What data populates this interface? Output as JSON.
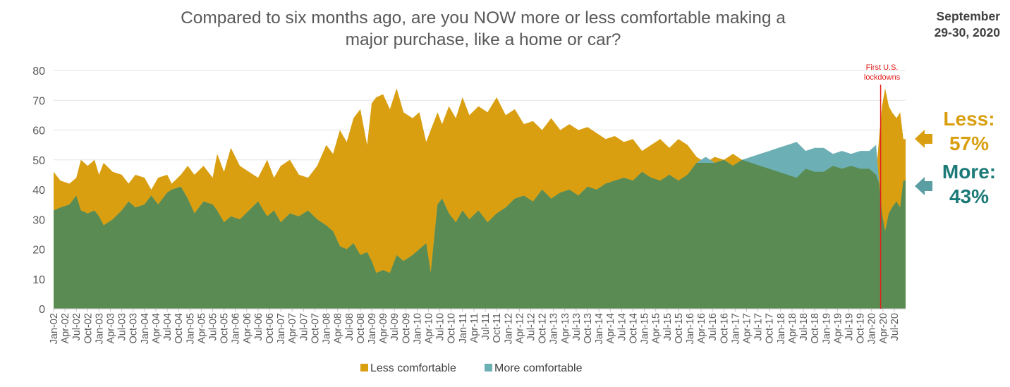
{
  "title_line1": "Compared to six months ago, are you NOW more or less comfortable making a",
  "title_line2": "major purchase, like a home or car?",
  "date_line1": "September",
  "date_line2": "29-30, 2020",
  "callouts": {
    "less_label": "Less:",
    "less_value": "57%",
    "more_label": "More:",
    "more_value": "43%"
  },
  "annotation": {
    "line1": "First U.S.",
    "line2": "lockdowns",
    "x": 2020.2
  },
  "colors": {
    "less": "#d99f11",
    "more": "#6cb0b6",
    "overlap": "#5a8b52",
    "annotation": "#e0201c",
    "grid": "#e3e3e3"
  },
  "chart_data": {
    "type": "area",
    "ylim": [
      0,
      80
    ],
    "y_ticks": [
      0,
      10,
      20,
      30,
      40,
      50,
      60,
      70,
      80
    ],
    "xlim": [
      2002.0,
      2020.75
    ],
    "x_tick_labels": [
      "Jan-02",
      "Apr-02",
      "Jul-02",
      "Oct-02",
      "Jan-03",
      "Apr-03",
      "Jul-03",
      "Oct-03",
      "Jan-04",
      "Apr-04",
      "Jul-04",
      "Oct-04",
      "Jan-05",
      "Apr-05",
      "Jul-05",
      "Oct-05",
      "Jan-06",
      "Apr-06",
      "Jul-06",
      "Oct-06",
      "Jan-07",
      "Apr-07",
      "Jul-07",
      "Oct-07",
      "Jan-08",
      "Apr-08",
      "Jul-08",
      "Oct-08",
      "Jan-09",
      "Apr-09",
      "Jul-09",
      "Oct-09",
      "Jan-10",
      "Apr-10",
      "Jul-10",
      "Oct-10",
      "Jan-11",
      "Apr-11",
      "Jul-11",
      "Oct-11",
      "Jan-12",
      "Apr-12",
      "Jul-12",
      "Oct-12",
      "Jan-13",
      "Apr-13",
      "Jul-13",
      "Oct-13",
      "Jan-14",
      "Apr-14",
      "Jul-14",
      "Oct-14",
      "Jan-15",
      "Apr-15",
      "Jul-15",
      "Oct-15",
      "Jan-16",
      "Apr-16",
      "Jul-16",
      "Oct-16",
      "Jan-17",
      "Apr-17",
      "Jul-17",
      "Oct-17",
      "Jan-18",
      "Apr-18",
      "Jul-18",
      "Oct-18",
      "Jan-19",
      "Apr-19",
      "Jul-19",
      "Oct-19",
      "Jan-20",
      "Apr-20",
      "Jul-20"
    ],
    "grid": true,
    "legend_position": "bottom",
    "series": [
      {
        "name": "Less comfortable",
        "points": [
          [
            2002.0,
            46
          ],
          [
            2002.15,
            43
          ],
          [
            2002.35,
            42
          ],
          [
            2002.5,
            44
          ],
          [
            2002.6,
            50
          ],
          [
            2002.75,
            48
          ],
          [
            2002.9,
            50
          ],
          [
            2003.0,
            45
          ],
          [
            2003.1,
            49
          ],
          [
            2003.3,
            46
          ],
          [
            2003.5,
            45
          ],
          [
            2003.65,
            42
          ],
          [
            2003.8,
            45
          ],
          [
            2004.0,
            44
          ],
          [
            2004.15,
            40
          ],
          [
            2004.3,
            44
          ],
          [
            2004.5,
            45
          ],
          [
            2004.6,
            42
          ],
          [
            2004.8,
            45
          ],
          [
            2004.95,
            48
          ],
          [
            2005.1,
            45
          ],
          [
            2005.3,
            48
          ],
          [
            2005.5,
            44
          ],
          [
            2005.6,
            52
          ],
          [
            2005.75,
            46
          ],
          [
            2005.9,
            54
          ],
          [
            2006.1,
            48
          ],
          [
            2006.3,
            46
          ],
          [
            2006.5,
            44
          ],
          [
            2006.7,
            50
          ],
          [
            2006.85,
            44
          ],
          [
            2007.0,
            48
          ],
          [
            2007.2,
            50
          ],
          [
            2007.4,
            45
          ],
          [
            2007.6,
            44
          ],
          [
            2007.8,
            48
          ],
          [
            2008.0,
            55
          ],
          [
            2008.15,
            52
          ],
          [
            2008.3,
            60
          ],
          [
            2008.45,
            56
          ],
          [
            2008.6,
            64
          ],
          [
            2008.75,
            67
          ],
          [
            2008.9,
            55
          ],
          [
            2009.0,
            69
          ],
          [
            2009.1,
            71
          ],
          [
            2009.25,
            72
          ],
          [
            2009.4,
            67
          ],
          [
            2009.55,
            74
          ],
          [
            2009.7,
            66
          ],
          [
            2009.9,
            64
          ],
          [
            2010.05,
            66
          ],
          [
            2010.2,
            56
          ],
          [
            2010.3,
            60
          ],
          [
            2010.45,
            66
          ],
          [
            2010.55,
            62
          ],
          [
            2010.7,
            68
          ],
          [
            2010.85,
            64
          ],
          [
            2011.0,
            71
          ],
          [
            2011.15,
            65
          ],
          [
            2011.35,
            68
          ],
          [
            2011.55,
            66
          ],
          [
            2011.75,
            71
          ],
          [
            2011.95,
            65
          ],
          [
            2012.15,
            67
          ],
          [
            2012.35,
            62
          ],
          [
            2012.55,
            63
          ],
          [
            2012.75,
            60
          ],
          [
            2012.95,
            64
          ],
          [
            2013.15,
            60
          ],
          [
            2013.35,
            62
          ],
          [
            2013.55,
            60
          ],
          [
            2013.75,
            61
          ],
          [
            2013.95,
            59
          ],
          [
            2014.15,
            57
          ],
          [
            2014.35,
            58
          ],
          [
            2014.55,
            56
          ],
          [
            2014.75,
            57
          ],
          [
            2014.95,
            53
          ],
          [
            2015.15,
            55
          ],
          [
            2015.35,
            57
          ],
          [
            2015.55,
            54
          ],
          [
            2015.75,
            57
          ],
          [
            2015.95,
            55
          ],
          [
            2016.15,
            51
          ],
          [
            2016.35,
            49
          ],
          [
            2016.55,
            51
          ],
          [
            2016.75,
            50
          ],
          [
            2016.95,
            52
          ],
          [
            2017.15,
            50
          ],
          [
            2017.35,
            49
          ],
          [
            2017.55,
            48
          ],
          [
            2017.75,
            47
          ],
          [
            2017.95,
            46
          ],
          [
            2018.15,
            45
          ],
          [
            2018.35,
            44
          ],
          [
            2018.55,
            47
          ],
          [
            2018.75,
            46
          ],
          [
            2018.95,
            46
          ],
          [
            2019.15,
            48
          ],
          [
            2019.35,
            47
          ],
          [
            2019.55,
            48
          ],
          [
            2019.75,
            47
          ],
          [
            2019.95,
            47
          ],
          [
            2020.1,
            45
          ],
          [
            2020.17,
            58
          ],
          [
            2020.23,
            68
          ],
          [
            2020.3,
            74
          ],
          [
            2020.38,
            68
          ],
          [
            2020.45,
            66
          ],
          [
            2020.55,
            64
          ],
          [
            2020.63,
            66
          ],
          [
            2020.7,
            57
          ],
          [
            2020.75,
            57
          ]
        ]
      },
      {
        "name": "More comfortable",
        "points": [
          [
            2002.0,
            33
          ],
          [
            2002.15,
            34
          ],
          [
            2002.35,
            35
          ],
          [
            2002.5,
            38
          ],
          [
            2002.6,
            33
          ],
          [
            2002.75,
            32
          ],
          [
            2002.9,
            33
          ],
          [
            2003.0,
            31
          ],
          [
            2003.1,
            28
          ],
          [
            2003.3,
            30
          ],
          [
            2003.5,
            33
          ],
          [
            2003.65,
            36
          ],
          [
            2003.8,
            34
          ],
          [
            2004.0,
            35
          ],
          [
            2004.15,
            38
          ],
          [
            2004.3,
            35
          ],
          [
            2004.5,
            39
          ],
          [
            2004.6,
            40
          ],
          [
            2004.8,
            41
          ],
          [
            2004.95,
            37
          ],
          [
            2005.1,
            32
          ],
          [
            2005.3,
            36
          ],
          [
            2005.5,
            35
          ],
          [
            2005.6,
            33
          ],
          [
            2005.75,
            29
          ],
          [
            2005.9,
            31
          ],
          [
            2006.1,
            30
          ],
          [
            2006.3,
            33
          ],
          [
            2006.5,
            36
          ],
          [
            2006.7,
            31
          ],
          [
            2006.85,
            33
          ],
          [
            2007.0,
            29
          ],
          [
            2007.2,
            32
          ],
          [
            2007.4,
            31
          ],
          [
            2007.6,
            33
          ],
          [
            2007.8,
            30
          ],
          [
            2008.0,
            28
          ],
          [
            2008.15,
            26
          ],
          [
            2008.3,
            21
          ],
          [
            2008.45,
            20
          ],
          [
            2008.6,
            22
          ],
          [
            2008.75,
            18
          ],
          [
            2008.9,
            19
          ],
          [
            2009.0,
            16
          ],
          [
            2009.1,
            12
          ],
          [
            2009.25,
            13
          ],
          [
            2009.4,
            12
          ],
          [
            2009.55,
            18
          ],
          [
            2009.7,
            16
          ],
          [
            2009.9,
            18
          ],
          [
            2010.05,
            20
          ],
          [
            2010.2,
            22
          ],
          [
            2010.3,
            12
          ],
          [
            2010.45,
            35
          ],
          [
            2010.55,
            37
          ],
          [
            2010.7,
            32
          ],
          [
            2010.85,
            29
          ],
          [
            2011.0,
            33
          ],
          [
            2011.15,
            30
          ],
          [
            2011.35,
            33
          ],
          [
            2011.55,
            29
          ],
          [
            2011.75,
            32
          ],
          [
            2011.95,
            34
          ],
          [
            2012.15,
            37
          ],
          [
            2012.35,
            38
          ],
          [
            2012.55,
            36
          ],
          [
            2012.75,
            40
          ],
          [
            2012.95,
            37
          ],
          [
            2013.15,
            39
          ],
          [
            2013.35,
            40
          ],
          [
            2013.55,
            38
          ],
          [
            2013.75,
            41
          ],
          [
            2013.95,
            40
          ],
          [
            2014.15,
            42
          ],
          [
            2014.35,
            43
          ],
          [
            2014.55,
            44
          ],
          [
            2014.75,
            43
          ],
          [
            2014.95,
            46
          ],
          [
            2015.15,
            44
          ],
          [
            2015.35,
            43
          ],
          [
            2015.55,
            45
          ],
          [
            2015.75,
            43
          ],
          [
            2015.95,
            45
          ],
          [
            2016.15,
            49
          ],
          [
            2016.35,
            51
          ],
          [
            2016.55,
            49
          ],
          [
            2016.75,
            50
          ],
          [
            2016.95,
            48
          ],
          [
            2017.15,
            50
          ],
          [
            2017.35,
            51
          ],
          [
            2017.55,
            52
          ],
          [
            2017.75,
            53
          ],
          [
            2017.95,
            54
          ],
          [
            2018.15,
            55
          ],
          [
            2018.35,
            56
          ],
          [
            2018.55,
            53
          ],
          [
            2018.75,
            54
          ],
          [
            2018.95,
            54
          ],
          [
            2019.15,
            52
          ],
          [
            2019.35,
            53
          ],
          [
            2019.55,
            52
          ],
          [
            2019.75,
            53
          ],
          [
            2019.95,
            53
          ],
          [
            2020.1,
            55
          ],
          [
            2020.17,
            42
          ],
          [
            2020.23,
            32
          ],
          [
            2020.3,
            26
          ],
          [
            2020.38,
            32
          ],
          [
            2020.45,
            34
          ],
          [
            2020.55,
            36
          ],
          [
            2020.63,
            34
          ],
          [
            2020.7,
            43
          ],
          [
            2020.75,
            43
          ]
        ]
      }
    ]
  }
}
